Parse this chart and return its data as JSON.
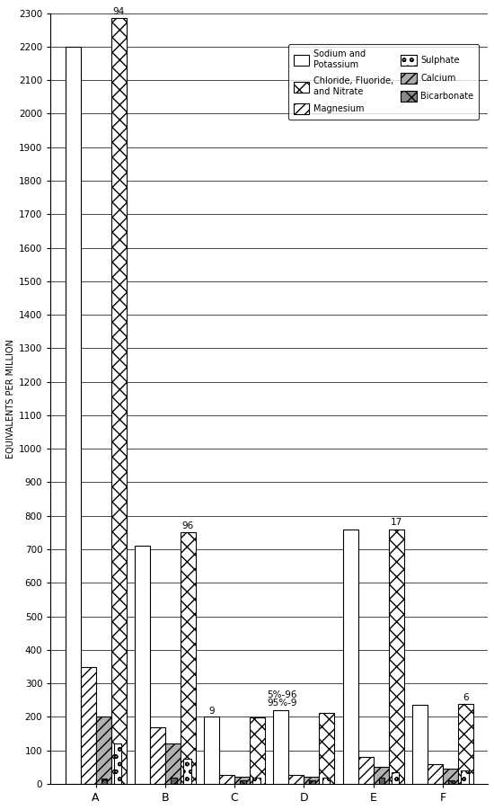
{
  "categories": [
    "A",
    "B",
    "C",
    "D",
    "E",
    "F"
  ],
  "bar_width": 0.22,
  "ylabel": "EQUIVALENTS PER MILLION",
  "ylim": [
    0,
    2300
  ],
  "yticks": [
    0,
    100,
    200,
    300,
    400,
    500,
    600,
    700,
    800,
    900,
    1000,
    1100,
    1200,
    1300,
    1400,
    1500,
    1600,
    1700,
    1800,
    1900,
    2000,
    2100,
    2200,
    2300
  ],
  "series": {
    "sodium_potassium": [
      2200,
      710,
      200,
      220,
      760,
      235
    ],
    "magnesium": [
      350,
      170,
      28,
      28,
      80,
      60
    ],
    "calcium": [
      200,
      120,
      22,
      22,
      50,
      45
    ],
    "chloride_fluoride_nitrate": [
      2285,
      750,
      198,
      213,
      760,
      238
    ],
    "sulphate": [
      120,
      75,
      18,
      18,
      35,
      40
    ],
    "bicarbonate": [
      15,
      20,
      12,
      12,
      18,
      12
    ]
  },
  "legend_items": [
    {
      "label": "Sodium and\nPotassium",
      "hatch": "",
      "facecolor": "white",
      "col": 0
    },
    {
      "label": "Chloride, Fluoride,\nand Nitrate",
      "hatch": "xx",
      "facecolor": "white",
      "col": 1
    },
    {
      "label": "Magnesium",
      "hatch": "///",
      "facecolor": "white",
      "col": 0
    },
    {
      "label": "Sulphate",
      "hatch": "oo",
      "facecolor": "white",
      "col": 1
    },
    {
      "label": "Calcium",
      "hatch": "///",
      "facecolor": "#aaaaaa",
      "col": 0
    },
    {
      "label": "Bicarbonate",
      "hatch": "xx",
      "facecolor": "#888888",
      "col": 1
    }
  ],
  "annotations": [
    {
      "text": "94",
      "bar": 3,
      "cat": 0,
      "y": 2292
    },
    {
      "text": "96",
      "bar": 3,
      "cat": 1,
      "y": 757
    },
    {
      "text": "9",
      "bar": 0,
      "cat": 2,
      "y": 204
    },
    {
      "text": "5%-96",
      "bar": 0,
      "cat": 3,
      "y": 252
    },
    {
      "text": "95%-9",
      "bar": 0,
      "cat": 3,
      "y": 228
    },
    {
      "text": "17",
      "bar": 3,
      "cat": 4,
      "y": 767
    },
    {
      "text": "6",
      "bar": 3,
      "cat": 5,
      "y": 244
    }
  ]
}
